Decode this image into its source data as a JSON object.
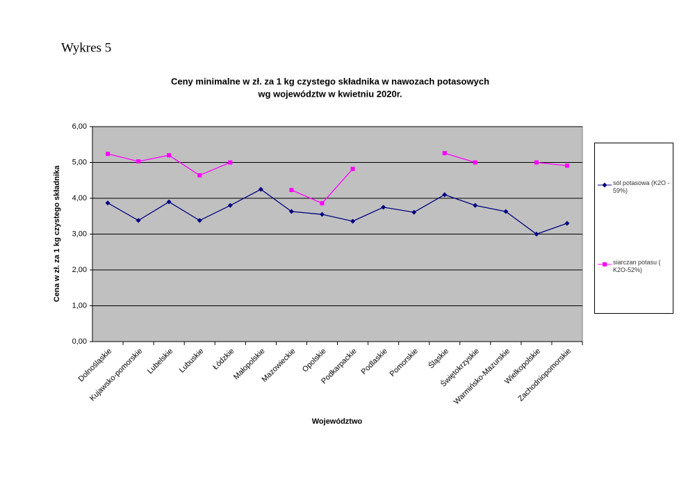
{
  "chart_data": {
    "type": "line",
    "heading": "Wykres 5",
    "title": "Ceny minimalne  w zł. za 1 kg czystego składnika w nawozach potasowych",
    "subtitle": "wg województw w kwietniu  2020r.",
    "xlabel": "Województwo",
    "ylabel": "Cena w zł. za 1 kg czystego składnika",
    "categories": [
      "Dolnośląskie",
      "Kujawsko-pomorskie",
      "Lubelskie",
      "Lubuskie",
      "Łódzkie",
      "Małopolskie",
      "Mazowieckie",
      "Opolskie",
      "Podkarpackie",
      "Podlaskie",
      "Pomorskie",
      "Śląskie",
      "Świętokrzyskie",
      "Warmińsko-Mazurskie",
      "Wielkopolskie",
      "Zachodniopomorskie"
    ],
    "series": [
      {
        "name": "sól potasowa (K2O - 59%)",
        "color": "#000080",
        "marker": "diamond",
        "values": [
          3.87,
          3.38,
          3.9,
          3.38,
          3.8,
          4.25,
          3.63,
          3.55,
          3.36,
          3.75,
          3.61,
          4.1,
          3.8,
          3.63,
          3.0,
          3.3
        ]
      },
      {
        "name": "siarczan potasu ( K2O-52%)",
        "color": "#ff00ff",
        "marker": "square",
        "values": [
          5.24,
          5.03,
          5.2,
          4.64,
          5.0,
          null,
          4.23,
          3.86,
          4.82,
          null,
          null,
          5.26,
          5.0,
          null,
          5.0,
          4.91
        ]
      }
    ],
    "ylim": [
      0,
      6
    ],
    "yticks": [
      {
        "value": 0,
        "label": "0,00"
      },
      {
        "value": 1,
        "label": "1,00"
      },
      {
        "value": 2,
        "label": "2,00"
      },
      {
        "value": 3,
        "label": "3,00"
      },
      {
        "value": 4,
        "label": "4,00"
      },
      {
        "value": 5,
        "label": "5,00"
      },
      {
        "value": 6,
        "label": "6,00"
      }
    ],
    "grid": true,
    "plot_background": "#c0c0c0",
    "legend": "right"
  }
}
